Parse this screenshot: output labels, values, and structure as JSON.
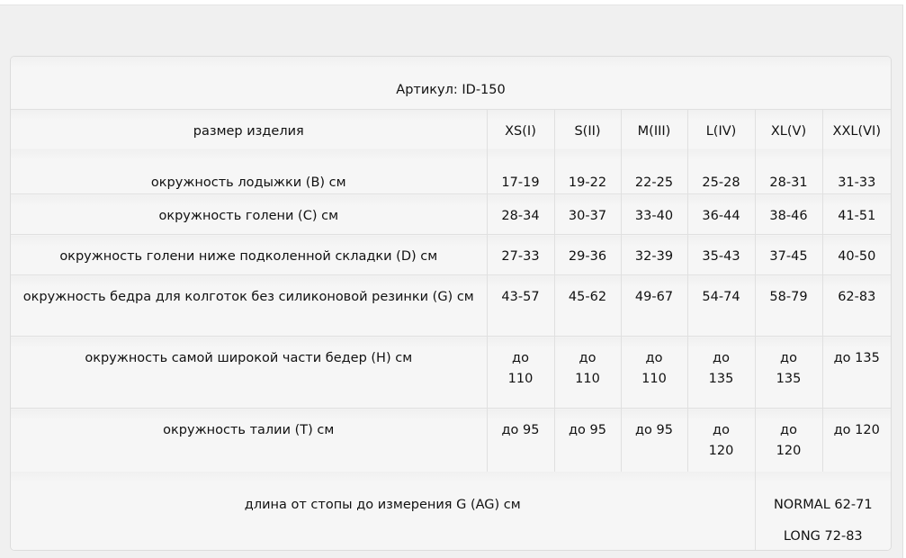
{
  "article": "Артикул: ID-150",
  "header": {
    "label": "размер изделия",
    "sizes": [
      "XS(I)",
      "S(II)",
      "M(III)",
      "L(IV)",
      "XL(V)",
      "XXL(VI)"
    ]
  },
  "rows": [
    {
      "label": "окружность лодыжки (B) см",
      "values": [
        "17-19",
        "19-22",
        "22-25",
        "25-28",
        "28-31",
        "31-33"
      ]
    },
    {
      "label": "окружность голени (C) см",
      "values": [
        "28-34",
        "30-37",
        "33-40",
        "36-44",
        "38-46",
        "41-51"
      ]
    },
    {
      "label": "окружность голени ниже подколенной складки (D) см",
      "values": [
        "27-33",
        "29-36",
        "32-39",
        "35-43",
        "37-45",
        "40-50"
      ]
    },
    {
      "label": "окружность бедра для колготок без силиконовой резинки (G) см",
      "values": [
        "43-57",
        "45-62",
        "49-67",
        "54-74",
        "58-79",
        "62-83"
      ]
    },
    {
      "label": "окружность самой широкой части бедер (H) см",
      "values": [
        "до 110",
        "до 110",
        "до 110",
        "до 135",
        "до 135",
        "до 135"
      ]
    },
    {
      "label": "окружность талии (T) см",
      "values": [
        "до 95",
        "до 95",
        "до 95",
        "до 120",
        "до 120",
        "до 120"
      ]
    }
  ],
  "length": {
    "label": "длина от стопы до измерения G (AG) см",
    "values": [
      "NORMAL 62-71",
      "LONG 72-83"
    ]
  }
}
